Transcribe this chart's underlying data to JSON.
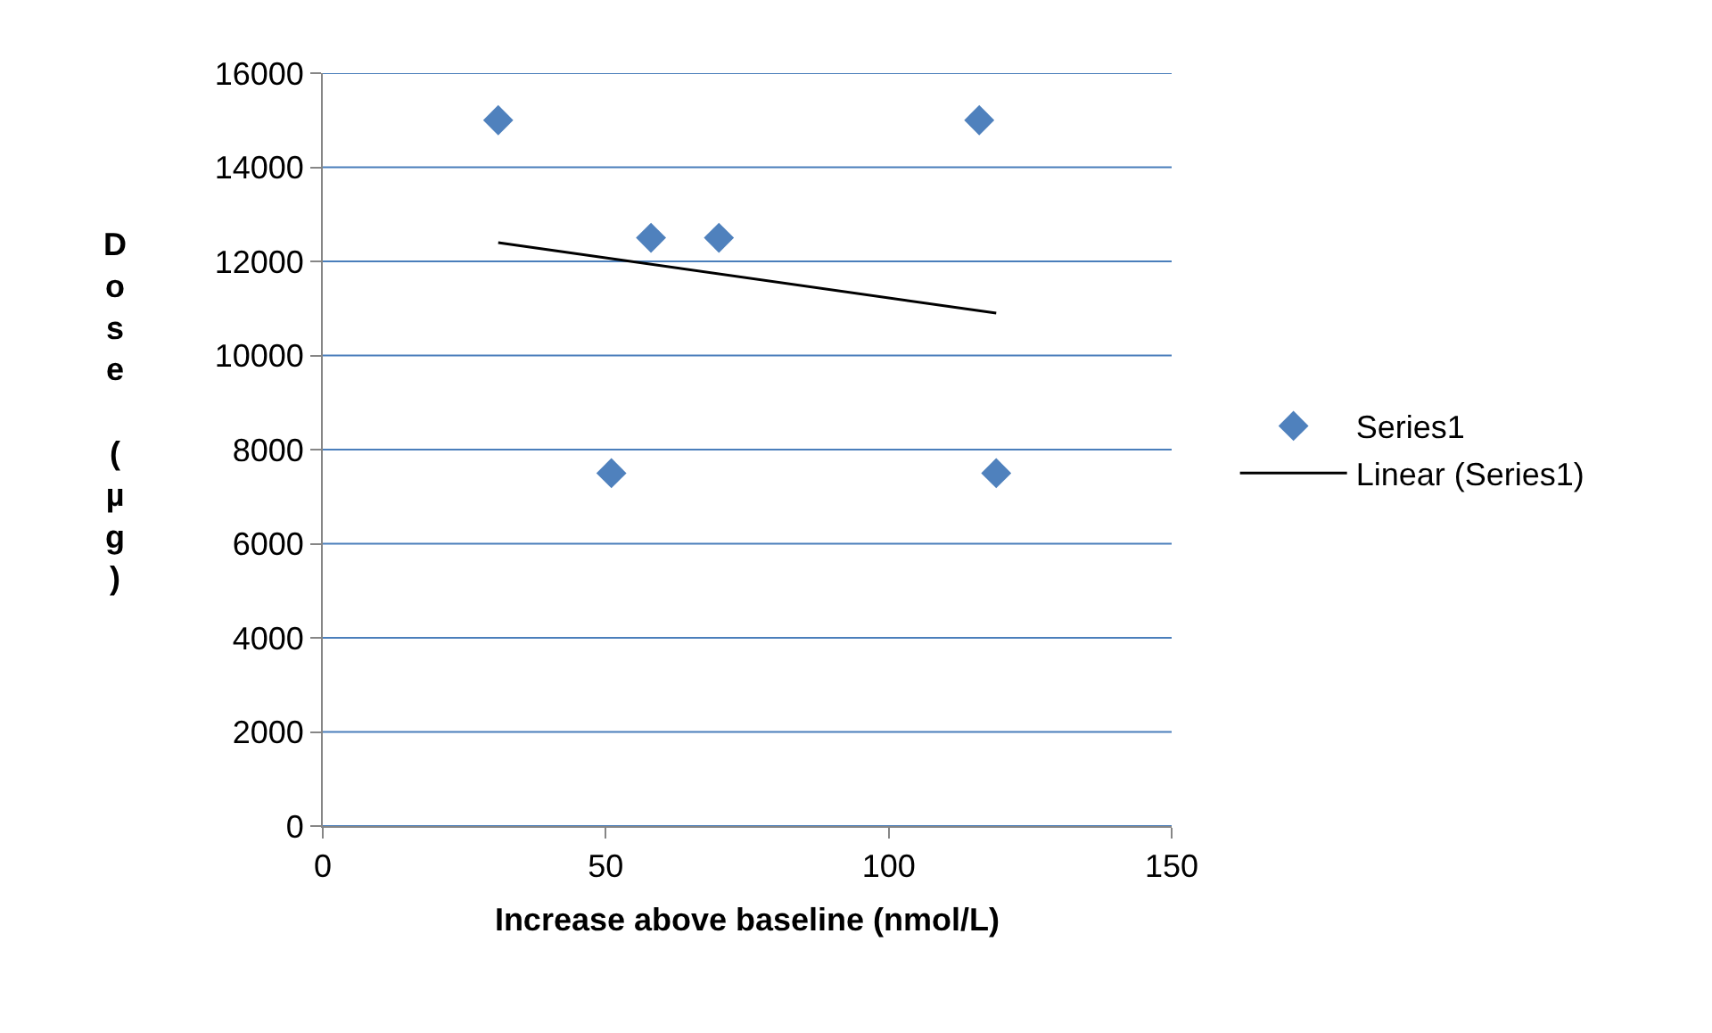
{
  "chart_data": {
    "type": "scatter",
    "xlabel": "Increase above baseline (nmol/L)",
    "ylabel": "Dose (µg)",
    "xlim": [
      0,
      150
    ],
    "xticks": [
      0,
      50,
      100,
      150
    ],
    "ylim": [
      0,
      16000
    ],
    "yticks": [
      0,
      2000,
      4000,
      6000,
      8000,
      10000,
      12000,
      14000,
      16000
    ],
    "grid": "y",
    "legend": "right",
    "series": [
      {
        "name": "Series1",
        "color": "#4f81bd",
        "marker": "diamond",
        "x": [
          31,
          51,
          58,
          70,
          116,
          119
        ],
        "values": [
          15000,
          7500,
          12500,
          12500,
          15000,
          7500
        ]
      },
      {
        "name": "Linear (Series1)",
        "type": "line",
        "color": "#000000",
        "marker": "none",
        "x": [
          31,
          119
        ],
        "values": [
          12400,
          10900
        ]
      }
    ]
  }
}
